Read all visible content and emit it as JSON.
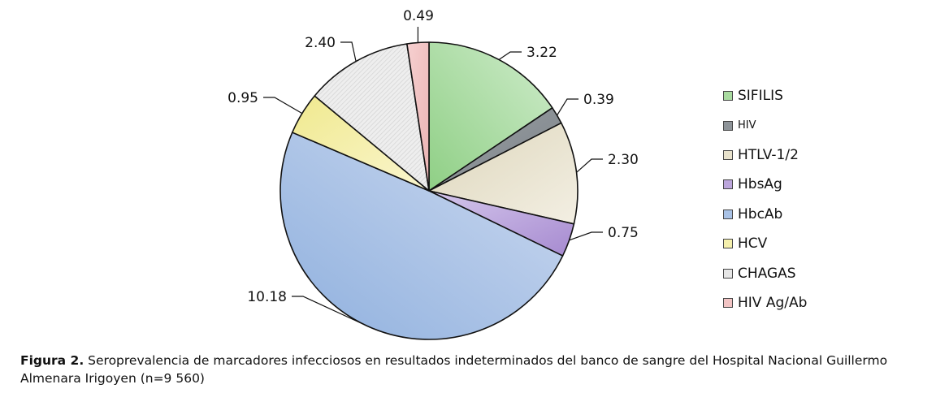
{
  "chart_data": {
    "type": "pie",
    "categories": [
      "SIFILIS",
      "HIV",
      "HTLV-1/2",
      "HbsAg",
      "HbcAb",
      "HCV",
      "CHAGAS",
      "HIV Ag/Ab"
    ],
    "values": [
      3.22,
      0.39,
      2.3,
      0.75,
      10.18,
      0.95,
      2.4,
      0.49
    ],
    "value_labels": [
      "3.22",
      "0.39",
      "2.30",
      "0.75",
      "10.18",
      "0.95",
      "2.40",
      "0.49"
    ],
    "colors": [
      "#a9dba0",
      "#8e9499",
      "#e8e2cc",
      "#bca6dc",
      "#a9c2e6",
      "#f5f0ad",
      "#e6e6e6",
      "#f2c4c4"
    ],
    "legend": "right",
    "start": "top",
    "direction": "clockwise"
  },
  "caption": {
    "label": "Figura 2.",
    "text": "Seroprevalencia de marcadores infecciosos en resultados indeterminados del banco de sangre del Hospital Nacional Guillermo Almenara Irigoyen (n=9 560)"
  }
}
